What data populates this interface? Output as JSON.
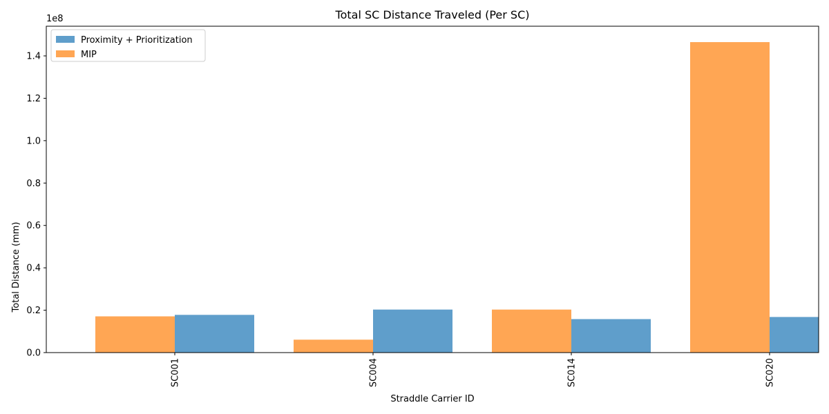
{
  "chart_data": {
    "type": "bar",
    "title": "Total SC Distance Traveled (Per SC)",
    "xlabel": "Straddle Carrier ID",
    "ylabel": "Total Distance (mm)",
    "y_multiplier_label": "1e8",
    "categories": [
      "SC001",
      "SC004",
      "SC014",
      "SC020"
    ],
    "series": [
      {
        "name": "Proximity + Prioritization",
        "color": "#5f9ecb",
        "values": [
          17800000,
          20300000,
          15800000,
          16800000
        ]
      },
      {
        "name": "MIP",
        "color": "#ffa654",
        "values": [
          17100000,
          6100000,
          20300000,
          146500000
        ]
      }
    ],
    "yticks": [
      0.0,
      0.2,
      0.4,
      0.6,
      0.8,
      1.0,
      1.2,
      1.4
    ],
    "ytick_labels": [
      "0.0",
      "0.2",
      "0.4",
      "0.6",
      "0.8",
      "1.0",
      "1.2",
      "1.4"
    ],
    "ylim": [
      0,
      154000000
    ],
    "legend_position": "top-left",
    "grid": false
  }
}
